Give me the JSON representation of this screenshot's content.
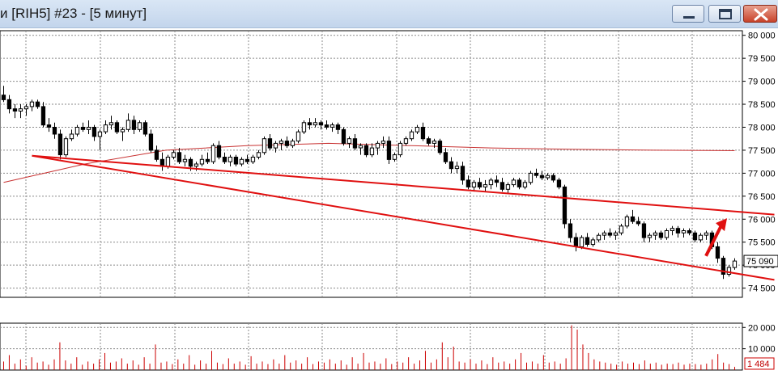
{
  "window": {
    "title": "и [RIH5] #23 - [5 минут]",
    "buttons": [
      "minimize",
      "maximize",
      "close"
    ]
  },
  "colors": {
    "bull_fill": "#ffffff",
    "bear_fill": "#000000",
    "trendline": "#e01010",
    "moving_average": "#c83232",
    "volume": "#cc0000",
    "price_badge": "#000000"
  },
  "chart_data": [
    {
      "type": "candlestick",
      "ylim": [
        74300,
        80100
      ],
      "yticks": [
        {
          "value": 80000,
          "label": "80 000"
        },
        {
          "value": 79500,
          "label": "79 500"
        },
        {
          "value": 79000,
          "label": "79 000"
        },
        {
          "value": 78500,
          "label": "78 500"
        },
        {
          "value": 78000,
          "label": "78 000"
        },
        {
          "value": 77500,
          "label": "77 500"
        },
        {
          "value": 77000,
          "label": "77 000"
        },
        {
          "value": 76500,
          "label": "76 500"
        },
        {
          "value": 76000,
          "label": "76 000"
        },
        {
          "value": 75500,
          "label": "75 500"
        },
        {
          "value": 75000,
          "label": "75 000"
        },
        {
          "value": 74500,
          "label": "74 500"
        }
      ],
      "last_price": {
        "value": 75090,
        "label": "75 090"
      },
      "grid": true,
      "ohlc": [
        [
          78700,
          78900,
          78550,
          78600
        ],
        [
          78600,
          78700,
          78300,
          78400
        ],
        [
          78400,
          78500,
          78200,
          78350
        ],
        [
          78350,
          78500,
          78200,
          78400
        ],
        [
          78400,
          78500,
          78250,
          78450
        ],
        [
          78450,
          78600,
          78350,
          78550
        ],
        [
          78550,
          78600,
          78400,
          78450
        ],
        [
          78450,
          78550,
          78000,
          78050
        ],
        [
          78050,
          78200,
          77900,
          78000
        ],
        [
          78000,
          78100,
          77750,
          77850
        ],
        [
          77850,
          77950,
          77300,
          77400
        ],
        [
          77400,
          77800,
          77350,
          77750
        ],
        [
          77750,
          77950,
          77700,
          77850
        ],
        [
          77850,
          78050,
          77800,
          78000
        ],
        [
          78000,
          78100,
          77900,
          77950
        ],
        [
          77950,
          78150,
          77850,
          78000
        ],
        [
          78000,
          78050,
          77700,
          77800
        ],
        [
          77800,
          77950,
          77500,
          77900
        ],
        [
          77900,
          78150,
          77850,
          78050
        ],
        [
          78050,
          78250,
          77950,
          78100
        ],
        [
          78100,
          78150,
          77850,
          77900
        ],
        [
          77900,
          78000,
          77700,
          77950
        ],
        [
          77950,
          78300,
          77900,
          78150
        ],
        [
          78150,
          78250,
          77850,
          77950
        ],
        [
          77950,
          78150,
          77900,
          78100
        ],
        [
          78100,
          78150,
          77800,
          77850
        ],
        [
          77850,
          77950,
          77450,
          77500
        ],
        [
          77500,
          77600,
          77250,
          77300
        ],
        [
          77300,
          77450,
          77050,
          77150
        ],
        [
          77150,
          77400,
          77100,
          77350
        ],
        [
          77350,
          77500,
          77300,
          77450
        ],
        [
          77450,
          77550,
          77200,
          77250
        ],
        [
          77250,
          77400,
          77150,
          77300
        ],
        [
          77300,
          77350,
          77050,
          77150
        ],
        [
          77150,
          77250,
          77050,
          77200
        ],
        [
          77200,
          77400,
          77150,
          77300
        ],
        [
          77300,
          77450,
          77200,
          77250
        ],
        [
          77250,
          77650,
          77200,
          77600
        ],
        [
          77600,
          77700,
          77300,
          77350
        ],
        [
          77350,
          77450,
          77200,
          77250
        ],
        [
          77250,
          77400,
          77150,
          77350
        ],
        [
          77350,
          77400,
          77150,
          77200
        ],
        [
          77200,
          77350,
          77150,
          77300
        ],
        [
          77300,
          77400,
          77200,
          77250
        ],
        [
          77250,
          77400,
          77200,
          77350
        ],
        [
          77350,
          77500,
          77300,
          77450
        ],
        [
          77450,
          77800,
          77400,
          77750
        ],
        [
          77750,
          77850,
          77500,
          77550
        ],
        [
          77550,
          77700,
          77450,
          77650
        ],
        [
          77650,
          77750,
          77500,
          77700
        ],
        [
          77700,
          77800,
          77550,
          77600
        ],
        [
          77600,
          77750,
          77550,
          77700
        ],
        [
          77700,
          77950,
          77650,
          77900
        ],
        [
          77900,
          78150,
          77850,
          78100
        ],
        [
          78100,
          78200,
          77950,
          78050
        ],
        [
          78050,
          78200,
          78000,
          78100
        ],
        [
          78100,
          78150,
          77950,
          78050
        ],
        [
          78050,
          78150,
          77950,
          78000
        ],
        [
          78000,
          78100,
          77900,
          78050
        ],
        [
          78050,
          78100,
          77850,
          77950
        ],
        [
          77950,
          78000,
          77600,
          77650
        ],
        [
          77650,
          77800,
          77550,
          77750
        ],
        [
          77750,
          77850,
          77500,
          77550
        ],
        [
          77550,
          77650,
          77400,
          77600
        ],
        [
          77600,
          77650,
          77350,
          77400
        ],
        [
          77400,
          77650,
          77350,
          77550
        ],
        [
          77550,
          77700,
          77400,
          77650
        ],
        [
          77650,
          77800,
          77550,
          77700
        ],
        [
          77700,
          77800,
          77200,
          77300
        ],
        [
          77300,
          77450,
          77250,
          77400
        ],
        [
          77400,
          77700,
          77350,
          77650
        ],
        [
          77650,
          77800,
          77600,
          77750
        ],
        [
          77750,
          77950,
          77700,
          77900
        ],
        [
          77900,
          78050,
          77850,
          78000
        ],
        [
          78000,
          78100,
          77700,
          77750
        ],
        [
          77750,
          77800,
          77600,
          77650
        ],
        [
          77650,
          77750,
          77550,
          77700
        ],
        [
          77700,
          77750,
          77400,
          77450
        ],
        [
          77450,
          77550,
          77200,
          77250
        ],
        [
          77250,
          77350,
          77000,
          77100
        ],
        [
          77100,
          77250,
          77000,
          77150
        ],
        [
          77150,
          77250,
          76750,
          76850
        ],
        [
          76850,
          76950,
          76650,
          76700
        ],
        [
          76700,
          76850,
          76600,
          76800
        ],
        [
          76800,
          76900,
          76650,
          76700
        ],
        [
          76700,
          76850,
          76600,
          76750
        ],
        [
          76750,
          76900,
          76650,
          76850
        ],
        [
          76850,
          76950,
          76700,
          76800
        ],
        [
          76800,
          76900,
          76600,
          76650
        ],
        [
          76650,
          76800,
          76550,
          76750
        ],
        [
          76750,
          76900,
          76700,
          76850
        ],
        [
          76850,
          76900,
          76650,
          76700
        ],
        [
          76700,
          76850,
          76650,
          76800
        ],
        [
          76800,
          77050,
          76750,
          77000
        ],
        [
          77000,
          77100,
          76900,
          76950
        ],
        [
          76950,
          77050,
          76850,
          76900
        ],
        [
          76900,
          77000,
          76850,
          76950
        ],
        [
          76950,
          77000,
          76800,
          76850
        ],
        [
          76850,
          76900,
          76650,
          76700
        ],
        [
          76700,
          76750,
          75800,
          75900
        ],
        [
          75900,
          76000,
          75500,
          75600
        ],
        [
          75600,
          75700,
          75300,
          75400
        ],
        [
          75400,
          75650,
          75350,
          75600
        ],
        [
          75600,
          75700,
          75400,
          75450
        ],
        [
          75450,
          75600,
          75400,
          75550
        ],
        [
          75550,
          75700,
          75500,
          75650
        ],
        [
          75650,
          75750,
          75550,
          75700
        ],
        [
          75700,
          75800,
          75600,
          75650
        ],
        [
          75650,
          75750,
          75550,
          75700
        ],
        [
          75700,
          75900,
          75650,
          75850
        ],
        [
          75850,
          76100,
          75800,
          76050
        ],
        [
          76050,
          76200,
          75900,
          75950
        ],
        [
          75950,
          76050,
          75850,
          75900
        ],
        [
          75900,
          75950,
          75500,
          75600
        ],
        [
          75600,
          75700,
          75500,
          75650
        ],
        [
          75650,
          75750,
          75550,
          75700
        ],
        [
          75700,
          75750,
          75550,
          75600
        ],
        [
          75600,
          75800,
          75550,
          75750
        ],
        [
          75750,
          75850,
          75650,
          75800
        ],
        [
          75800,
          75850,
          75600,
          75700
        ],
        [
          75700,
          75800,
          75600,
          75750
        ],
        [
          75750,
          75800,
          75650,
          75700
        ],
        [
          75700,
          75750,
          75500,
          75550
        ],
        [
          75550,
          75700,
          75500,
          75650
        ],
        [
          75650,
          75750,
          75550,
          75700
        ],
        [
          75700,
          75750,
          75350,
          75400
        ],
        [
          75400,
          75500,
          75050,
          75150
        ],
        [
          75150,
          75200,
          74700,
          74800
        ],
        [
          74800,
          75000,
          74750,
          74950
        ],
        [
          74950,
          75150,
          74900,
          75090
        ]
      ],
      "moving_average": [
        76800,
        77200,
        77500,
        77600,
        77650,
        77600,
        77550,
        77520,
        77500,
        77490
      ],
      "trendlines": [
        {
          "from": [
            5,
            77380
          ],
          "to": [
            136,
            76100
          ]
        },
        {
          "from": [
            5,
            77380
          ],
          "to": [
            136,
            74680
          ]
        }
      ]
    },
    {
      "type": "bar",
      "ylim": [
        0,
        22000
      ],
      "yticks": [
        {
          "value": 20000,
          "label": "20 000"
        },
        {
          "value": 10000,
          "label": "10 000"
        }
      ],
      "last_volume": {
        "value": 1484,
        "label": "1 484"
      },
      "values": [
        4000,
        7000,
        3000,
        5000,
        2000,
        6000,
        3500,
        4000,
        2500,
        5000,
        13000,
        4500,
        3000,
        6000,
        2500,
        4000,
        3000,
        5000,
        8000,
        3500,
        4000,
        5500,
        3000,
        4500,
        2500,
        6000,
        3000,
        12000,
        3500,
        4000,
        2800,
        5000,
        3000,
        7000,
        2500,
        4500,
        3000,
        9000,
        3500,
        2800,
        5500,
        3000,
        4000,
        2500,
        6500,
        3000,
        4000,
        2800,
        5000,
        3000,
        7000,
        3500,
        4500,
        3000,
        6000,
        2800,
        4000,
        3500,
        5000,
        3000,
        4500,
        2500,
        6000,
        3000,
        8000,
        3500,
        4000,
        3000,
        5500,
        2800,
        4000,
        3500,
        6000,
        3000,
        4500,
        9000,
        3500,
        5000,
        13000,
        6000,
        11000,
        4000,
        3500,
        5000,
        3000,
        4500,
        2800,
        6000,
        3500,
        4000,
        3000,
        5000,
        8000,
        3500,
        4000,
        3000,
        7000,
        3500,
        4000,
        3000,
        5500,
        21000,
        19000,
        12000,
        8000,
        5000,
        4000,
        3500,
        3000,
        2500,
        4000,
        3000,
        3500,
        2800,
        4500,
        3000,
        3500,
        2500,
        3000,
        2800,
        3500,
        2500,
        3000,
        2800,
        2500,
        3000,
        5000,
        7500,
        3500,
        2800,
        1484
      ]
    }
  ]
}
